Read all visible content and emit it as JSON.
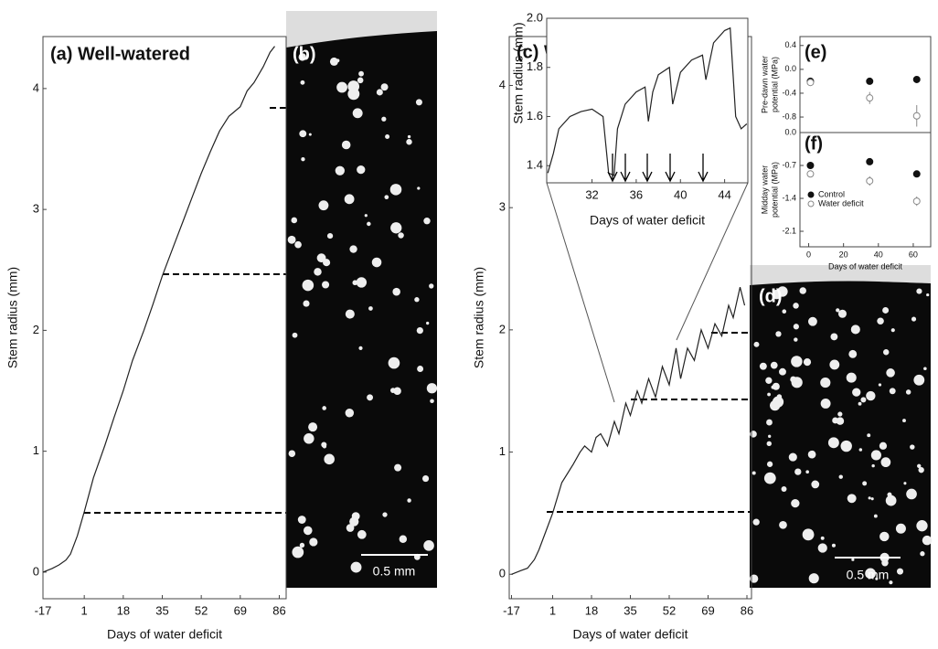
{
  "chart_data": [
    {
      "type": "line",
      "title": "(a) Well-watered",
      "xlabel": "Days of water deficit",
      "ylabel": "Stem radius (mm)",
      "x": [
        -17,
        -13,
        -10,
        -7,
        -5,
        -2,
        1,
        5,
        10,
        14,
        18,
        22,
        27,
        31,
        35,
        40,
        44,
        48,
        52,
        56,
        60,
        64,
        69,
        72,
        75,
        79,
        82,
        84
      ],
      "values": [
        0,
        0.03,
        0.06,
        0.1,
        0.15,
        0.3,
        0.5,
        0.78,
        1.05,
        1.28,
        1.5,
        1.75,
        2.0,
        2.22,
        2.45,
        2.7,
        2.9,
        3.1,
        3.3,
        3.48,
        3.65,
        3.77,
        3.85,
        3.98,
        4.05,
        4.18,
        4.3,
        4.35
      ],
      "color": "#222",
      "xlim": [
        -17,
        89
      ],
      "ylim": [
        -0.22,
        4.43
      ],
      "xticks": [
        -17,
        1,
        18,
        35,
        52,
        69,
        86
      ],
      "yticks": [
        0,
        1,
        2,
        3,
        4
      ]
    },
    {
      "type": "line",
      "title": "(c) Water deficit",
      "xlabel": "Days of water deficit",
      "ylabel": "Stem radius (mm)",
      "x": [
        -17,
        -13,
        -10,
        -7,
        -5,
        -2,
        1,
        5,
        10,
        13,
        15,
        18,
        20,
        22,
        25,
        28,
        30,
        33,
        35,
        38,
        40,
        43,
        46,
        49,
        52,
        55,
        57,
        60,
        63,
        66,
        69,
        72,
        75,
        78,
        80,
        83,
        85
      ],
      "values": [
        0,
        0.03,
        0.05,
        0.12,
        0.2,
        0.35,
        0.5,
        0.75,
        0.9,
        1.0,
        1.05,
        1.0,
        1.12,
        1.15,
        1.05,
        1.25,
        1.15,
        1.4,
        1.3,
        1.5,
        1.4,
        1.6,
        1.45,
        1.7,
        1.55,
        1.85,
        1.6,
        1.85,
        1.75,
        2.0,
        1.85,
        2.05,
        1.95,
        2.2,
        2.1,
        2.35,
        2.2
      ],
      "color": "#222",
      "xlim": [
        -18,
        88
      ],
      "ylim": [
        -0.2,
        4.4
      ],
      "xticks": [
        -17,
        1,
        18,
        35,
        52,
        69,
        86
      ],
      "yticks": [
        0,
        1,
        2,
        3,
        4
      ]
    },
    {
      "type": "line",
      "xlabel": "Days of water deficit",
      "ylabel": "Stem radius (mm)",
      "x": [
        28,
        28.5,
        29,
        30,
        31,
        32,
        33,
        33.5,
        34,
        34.3,
        35,
        36,
        36.8,
        37.1,
        37.5,
        38,
        39,
        39.3,
        40,
        41,
        42,
        42.3,
        43,
        44,
        44.5,
        45,
        45.5,
        46
      ],
      "values": [
        1.37,
        1.45,
        1.55,
        1.6,
        1.62,
        1.63,
        1.6,
        1.37,
        1.36,
        1.55,
        1.65,
        1.7,
        1.72,
        1.58,
        1.7,
        1.77,
        1.8,
        1.65,
        1.78,
        1.83,
        1.85,
        1.75,
        1.9,
        1.95,
        1.96,
        1.6,
        1.55,
        1.57
      ],
      "color": "#222",
      "xlim": [
        27.9,
        46.1
      ],
      "ylim": [
        1.33,
        2.0
      ],
      "xticks": [
        32,
        36,
        40,
        44
      ],
      "yticks": [
        1.4,
        1.6,
        1.8,
        {
          "value": 2.0,
          "label": "2.0"
        }
      ]
    },
    {
      "type": "scatter",
      "title": "(e)",
      "ylabel": [
        "Pre-dawn water",
        "potential (MPa)"
      ],
      "xlim": [
        -5,
        70
      ],
      "ylim": [
        -1.06,
        0.55
      ],
      "yticks": [
        {
          "value": 0.4,
          "label": "0.4"
        },
        {
          "value": 0,
          "label": "0.0"
        },
        -0.4,
        -0.8
      ],
      "series": [
        {
          "name": "Control",
          "color": "#111",
          "filled": true,
          "x": [
            1,
            35,
            62
          ],
          "values": [
            -0.2,
            -0.2,
            -0.17
          ],
          "errors": [
            null,
            null,
            null
          ]
        },
        {
          "name": "Water deficit",
          "color": "#888",
          "filled": false,
          "x": [
            1,
            35,
            62
          ],
          "values": [
            -0.22,
            -0.48,
            -0.78
          ],
          "errors": [
            null,
            0.1,
            0.18
          ]
        }
      ]
    },
    {
      "type": "scatter",
      "title": "(f)",
      "xlabel": "Days of water deficit",
      "ylabel": [
        "Midday water",
        "potential (MPa)"
      ],
      "xlim": [
        -5,
        70
      ],
      "ylim": [
        -2.43,
        0.0
      ],
      "xticks": [
        0,
        20,
        40,
        60
      ],
      "yticks": [
        {
          "value": 0,
          "label": "0.0"
        },
        -0.7,
        -1.4,
        -2.1
      ],
      "legend": "lower-left",
      "series": [
        {
          "name": "Control",
          "color": "#111",
          "filled": true,
          "x": [
            1,
            35,
            62
          ],
          "values": [
            -0.7,
            -0.62,
            -0.88
          ],
          "errors": [
            null,
            null,
            null
          ]
        },
        {
          "name": "Water deficit",
          "color": "#888",
          "filled": false,
          "x": [
            1,
            35,
            62
          ],
          "values": [
            -0.88,
            -1.03,
            -1.46
          ],
          "errors": [
            null,
            0.1,
            0.1
          ]
        }
      ]
    }
  ],
  "images": [
    {
      "label": "(b)",
      "scale": "0.5 mm"
    },
    {
      "label": "(d)",
      "scale": "0.5 mm"
    }
  ]
}
